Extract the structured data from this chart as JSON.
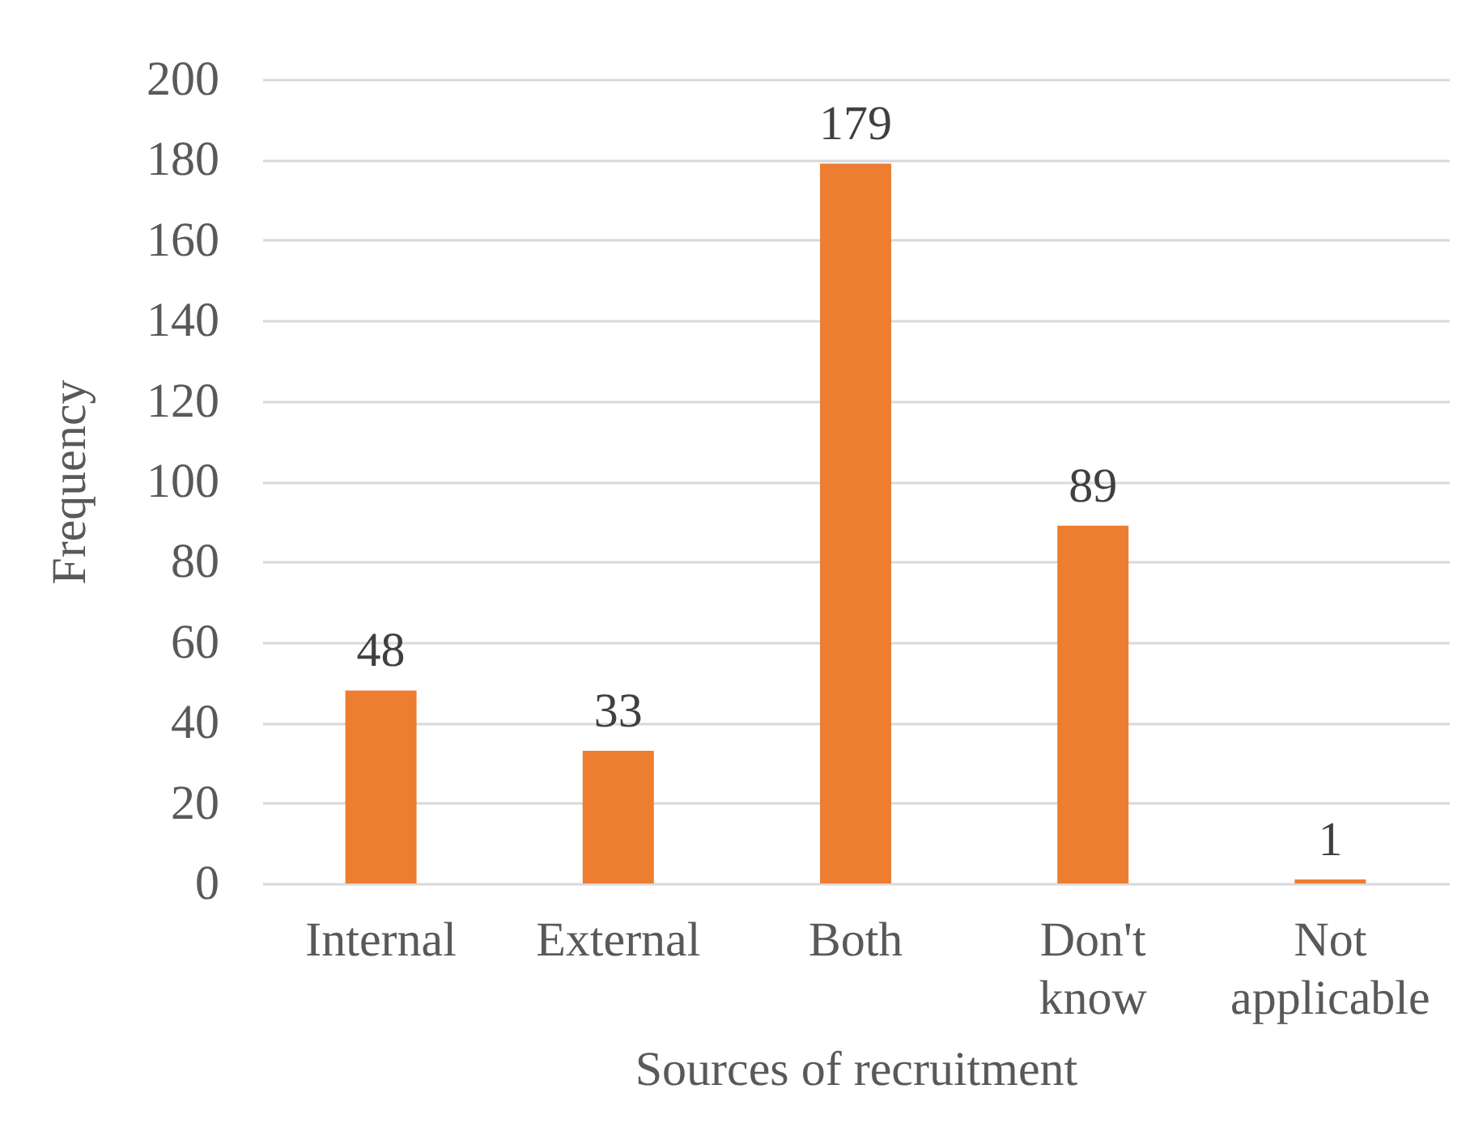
{
  "chart_data": {
    "type": "bar",
    "xlabel": "Sources of recruitment",
    "ylabel": "Frequency",
    "categories": [
      "Internal",
      "External",
      "Both",
      "Don't know",
      "Not applicable"
    ],
    "values": [
      48,
      33,
      179,
      89,
      1
    ],
    "color": "#ed7d31",
    "ylim": [
      0,
      200
    ],
    "yticks": [
      0,
      20,
      40,
      60,
      80,
      100,
      120,
      140,
      160,
      180,
      200
    ],
    "grid": "y",
    "data_labels": true
  }
}
